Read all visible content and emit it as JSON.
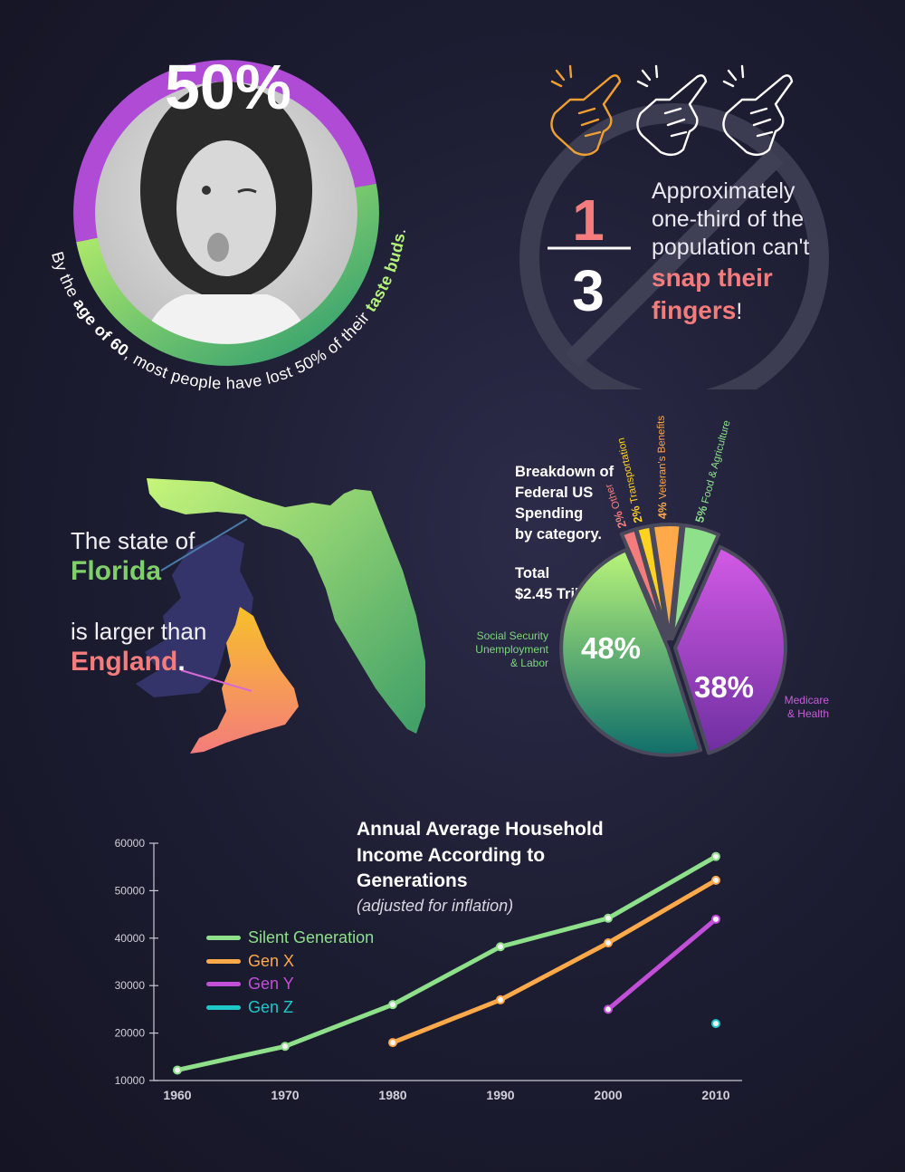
{
  "taste": {
    "percent": "50%",
    "caption_pre": "By the ",
    "caption_b1": "age of 60",
    "caption_mid": ", most people have lost 50% of their ",
    "caption_b2": "taste buds",
    "caption_end": "."
  },
  "snap": {
    "numerator": "1",
    "denominator": "3",
    "line1": "Approximately",
    "line2": "one-third of the",
    "line3": "population can't",
    "hl1": "snap their",
    "hl2": "fingers",
    "end": "!"
  },
  "florida": {
    "line1": "The state of",
    "strong1": "Florida",
    "line2": "is larger than",
    "strong2": "England",
    "strong2_end": "."
  },
  "pie": {
    "title_lines": [
      "Breakdown of",
      "Federal US",
      "Spending",
      "by category."
    ],
    "total_lines": [
      "Total",
      "$2.45 Trillion"
    ],
    "social_label_lines": [
      "Social Security",
      "Unemployment",
      "& Labor"
    ],
    "medicare_label_lines": [
      "Medicare",
      "& Health"
    ]
  },
  "colors": {
    "green_light": "#b4f37a",
    "green_dark": "#2e9a6e",
    "purple": "#b04bd6",
    "orange": "#ffa94a",
    "yellow": "#ffd21f",
    "pink": "#f47c7c",
    "cyan": "#1ec8c8"
  },
  "chart_data": [
    {
      "type": "pie",
      "title": "Breakdown of Federal US Spending by category.",
      "subtitle": "Total $2.45 Trillion",
      "slices": [
        {
          "label": "Social Security Unemployment & Labor",
          "value": 48,
          "display": "48%",
          "color": "#7fd680"
        },
        {
          "label": "Medicare & Health",
          "value": 38,
          "display": "38%",
          "color": "#b04bd6"
        },
        {
          "label": "Food & Agriculture",
          "value": 5,
          "display": "5%",
          "color": "#8ee08a"
        },
        {
          "label": "Veteran's Benefits",
          "value": 4,
          "display": "4%",
          "color": "#ffa94a"
        },
        {
          "label": "Transportation",
          "value": 2,
          "display": "2%",
          "color": "#ffd21f"
        },
        {
          "label": "Other",
          "value": 2,
          "display": "2%",
          "color": "#f47c7c"
        }
      ]
    },
    {
      "type": "line",
      "title": "Annual Average Household Income According to Generations",
      "subtitle": "(adjusted for inflation)",
      "xlabel": "",
      "ylabel": "",
      "x": [
        1960,
        1970,
        1980,
        1990,
        2000,
        2010
      ],
      "ylim": [
        10000,
        60000
      ],
      "yticks": [
        10000,
        20000,
        30000,
        40000,
        50000,
        60000
      ],
      "legend_position": "left",
      "series": [
        {
          "name": "Silent Generation",
          "color": "#8ee08a",
          "points": [
            [
              1960,
              12200
            ],
            [
              1970,
              17200
            ],
            [
              1980,
              26000
            ],
            [
              1990,
              38200
            ],
            [
              2000,
              44200
            ],
            [
              2010,
              57200
            ]
          ]
        },
        {
          "name": "Gen X",
          "color": "#ffa94a",
          "points": [
            [
              1980,
              18000
            ],
            [
              1990,
              27000
            ],
            [
              2000,
              39000
            ],
            [
              2010,
              52200
            ]
          ]
        },
        {
          "name": "Gen Y",
          "color": "#c24fd8",
          "points": [
            [
              2000,
              25000
            ],
            [
              2010,
              44000
            ]
          ]
        },
        {
          "name": "Gen Z",
          "color": "#1ec8c8",
          "points": [
            [
              2010,
              22000
            ]
          ]
        }
      ]
    }
  ]
}
